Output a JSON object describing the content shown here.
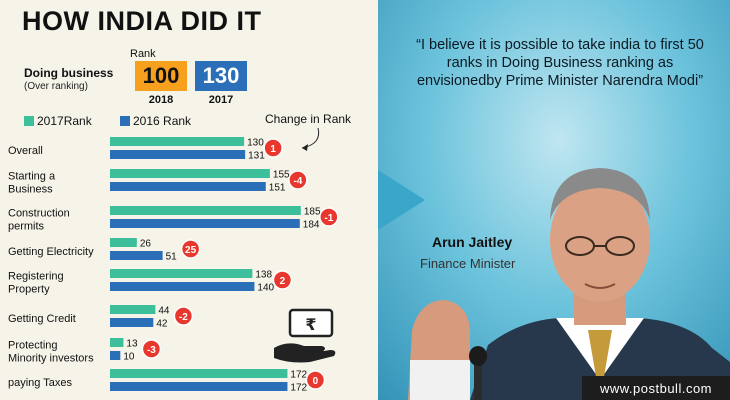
{
  "header": {
    "title": "HOW INDIA DID IT"
  },
  "doing_business": {
    "label": "Doing business",
    "sublabel": "(Over ranking)",
    "rank_label": "Rank",
    "ranks": [
      {
        "value": "100",
        "year": "2018",
        "color": "#f7a01e"
      },
      {
        "value": "130",
        "year": "2017",
        "color": "#2a6fb7"
      }
    ]
  },
  "legend": {
    "items": [
      {
        "label": "2017Rank",
        "color": "#3cbf9a"
      },
      {
        "label": "2016 Rank",
        "color": "#2a6fb7"
      }
    ],
    "change_label": "Change in Rank"
  },
  "chart_data": {
    "type": "bar",
    "orientation": "horizontal",
    "categories": [
      [
        "Overall"
      ],
      [
        "Starting a",
        "Business"
      ],
      [
        "Construction",
        "permits"
      ],
      [
        "Getting Electricity"
      ],
      [
        "Registering",
        "Property"
      ],
      [
        "Getting Credit"
      ],
      [
        "Protecting",
        "Minority investors"
      ],
      [
        "paying Taxes"
      ]
    ],
    "series": [
      {
        "name": "2017Rank",
        "color": "#3cbf9a",
        "values": [
          130,
          155,
          185,
          26,
          138,
          44,
          13,
          172
        ]
      },
      {
        "name": "2016 Rank",
        "color": "#2a6fb7",
        "values": [
          131,
          151,
          184,
          51,
          140,
          42,
          10,
          172
        ]
      }
    ],
    "change": [
      "1",
      "-4",
      "-1",
      "25",
      "2",
      "-2",
      "-3",
      "0"
    ],
    "change_color": "#e8372d",
    "xlim": [
      0,
      190
    ]
  },
  "quote": {
    "text": "“I believe it is possible to take india to first 50 ranks in Doing Business ranking as envisionedby Prime Minister Narendra Modi”"
  },
  "person": {
    "name": "Arun Jaitley",
    "role": "Finance Minister"
  },
  "watermark": {
    "text": "www.postbull.com"
  },
  "icons": {
    "money": "hand-money-icon",
    "rupee_symbol": "₹"
  }
}
